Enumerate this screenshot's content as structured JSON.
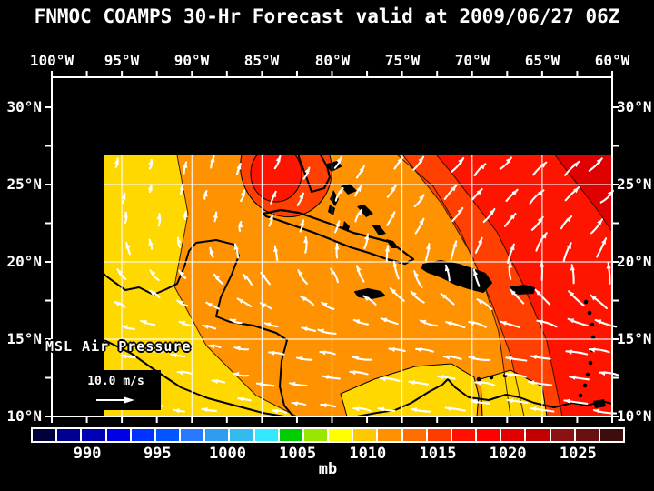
{
  "title": "FNMOC COAMPS 30-Hr Forecast valid at 2009/06/27 06Z",
  "axes": {
    "top_labels": [
      "100°W",
      "95°W",
      "90°W",
      "85°W",
      "80°W",
      "75°W",
      "70°W",
      "65°W",
      "60°W"
    ],
    "left_labels": [
      "30°N",
      "25°N",
      "20°N",
      "15°N",
      "10°N"
    ],
    "right_labels": [
      "30°N",
      "25°N",
      "20°N",
      "15°N",
      "10°N"
    ]
  },
  "map": {
    "field_label": "MSL Air Pressure",
    "wind_scale_label": "10.0 m/s"
  },
  "colorbar": {
    "unit": "mb",
    "tick_labels": [
      "990",
      "995",
      "1000",
      "1005",
      "1010",
      "1015",
      "1020",
      "1025"
    ],
    "colors": [
      "#00003A",
      "#000090",
      "#0000B4",
      "#0000E6",
      "#0033FF",
      "#0055FF",
      "#2979FF",
      "#2E9DF0",
      "#33BBEE",
      "#33E8FF",
      "#00CC00",
      "#99E600",
      "#FFFF00",
      "#FFC800",
      "#FF9100",
      "#FF6E00",
      "#FF3C00",
      "#FF0F00",
      "#FF0000",
      "#E00000",
      "#C30000",
      "#8A1212",
      "#671111",
      "#3D0D0D"
    ]
  },
  "palette": {
    "background": "#000000",
    "text": "#FFFFFF",
    "grid": "#FFFFFF",
    "coast": "#000000",
    "wind_arrow": "#FFFFFF",
    "pale_yellow": "#FBF05A",
    "yellow": "#FFD800",
    "orange": "#FF9200",
    "dark_orange": "#FF6E00",
    "orange_red": "#FF4000",
    "red": "#FF1400",
    "deep_red": "#DF0000",
    "dark_red": "#BA0000"
  }
}
